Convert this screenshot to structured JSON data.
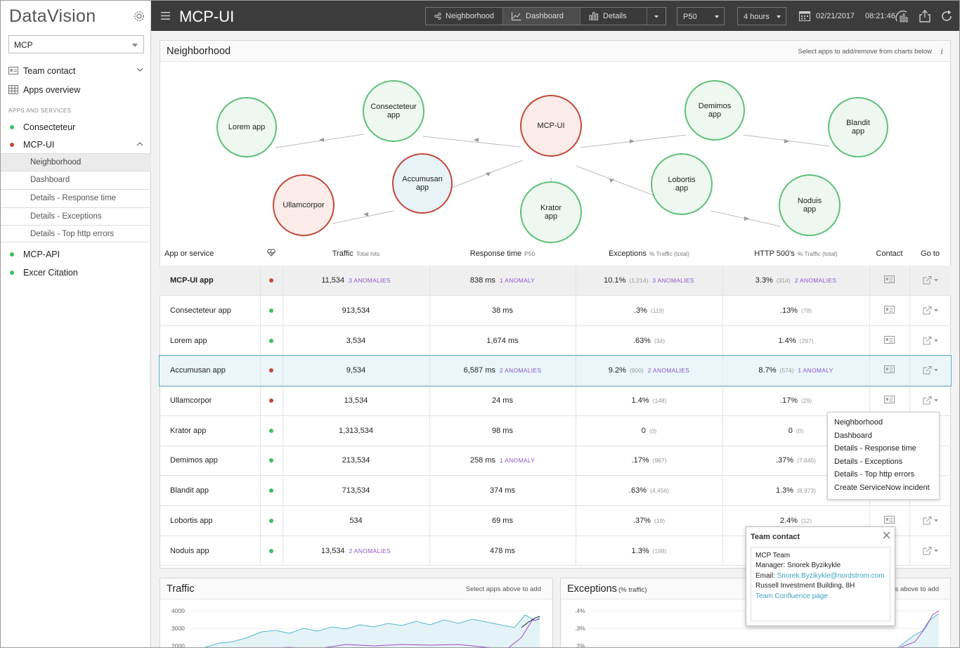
{
  "sidebar": {
    "logo": "DataVision",
    "select_value": "MCP",
    "team_contact": "Team contact",
    "apps_overview": "Apps overview",
    "section_header": "APPS AND SERVICES",
    "services": [
      {
        "label": "Consecteteur",
        "status": "#3dbf5f"
      },
      {
        "label": "MCP-UI",
        "status": "#c2493a"
      }
    ],
    "sub_items": [
      "Neighborhood",
      "Dashboard",
      "Details - Response time",
      "Details - Exceptions",
      "Details - Top http errors"
    ],
    "more_services": [
      {
        "label": "MCP-API",
        "status": "#3dbf5f"
      },
      {
        "label": "Excer Citation",
        "status": "#3dbf5f"
      }
    ]
  },
  "topbar": {
    "title": "MCP-UI",
    "views": [
      "Neighborhood",
      "Dashboard",
      "Details"
    ],
    "percentile": "P50",
    "range": "4 hours",
    "date": "02/21/2017",
    "time": "08:21:46"
  },
  "neighborhood": {
    "title": "Neighborhood",
    "hint": "Select apps to add/remove from charts below",
    "info_icon": "i",
    "nodes": {
      "lorem": "Lorem app",
      "consecteteur": "Consecteteur app",
      "mcpui": "MCP-UI",
      "demimos": "Demimos app",
      "blandit": "Blandit app",
      "ullamcorpor": "Ullamcorpor",
      "accumusan": "Accumusan app",
      "krator": "Krator app",
      "lobortis": "Lobortis app",
      "noduis": "Noduis app"
    }
  },
  "table": {
    "headers": {
      "app": "App or service",
      "traffic": "Traffic",
      "traffic_sub": "Total hits",
      "response": "Response time",
      "response_sub": "P50",
      "exceptions": "Exceptions",
      "exceptions_sub": "% Traffic (total)",
      "http500": "HTTP 500's",
      "http500_sub": "% Traffic (total)",
      "contact": "Contact",
      "goto": "Go to"
    },
    "rows": [
      {
        "name": "MCP-UI app",
        "status": "red",
        "traffic": "11,534",
        "traffic_anom": "3 ANOMALIES",
        "resp": "838 ms",
        "resp_anom": "1 ANOMALY",
        "exc": "10.1%",
        "exc_n": "(1,214)",
        "exc_anom": "3 ANOMALIES",
        "http": "3.3%",
        "http_n": "(314)",
        "http_anom": "2 ANOMALIES"
      },
      {
        "name": "Consecteteur app",
        "status": "green",
        "traffic": "913,534",
        "traffic_anom": "",
        "resp": "38 ms",
        "resp_anom": "",
        "exc": ".3%",
        "exc_n": "(119)",
        "exc_anom": "",
        "http": ".13%",
        "http_n": "(78)",
        "http_anom": ""
      },
      {
        "name": "Lorem app",
        "status": "green",
        "traffic": "3,534",
        "traffic_anom": "",
        "resp": "1,674 ms",
        "resp_anom": "",
        "exc": ".63%",
        "exc_n": "(34)",
        "exc_anom": "",
        "http": "1.4%",
        "http_n": "(297)",
        "http_anom": ""
      },
      {
        "name": "Accumusan app",
        "status": "red",
        "traffic": "9,534",
        "traffic_anom": "",
        "resp": "6,587 ms",
        "resp_anom": "2 ANOMALIES",
        "exc": "9.2%",
        "exc_n": "(900)",
        "exc_anom": "2 ANOMALIES",
        "http": "8.7%",
        "http_n": "(574)",
        "http_anom": "1 ANOMALY"
      },
      {
        "name": "Ullamcorpor",
        "status": "red",
        "traffic": "13,534",
        "traffic_anom": "",
        "resp": "24 ms",
        "resp_anom": "",
        "exc": "1.4%",
        "exc_n": "(148)",
        "exc_anom": "",
        "http": ".17%",
        "http_n": "(29)",
        "http_anom": ""
      },
      {
        "name": "Krator app",
        "status": "green",
        "traffic": "1,313,534",
        "traffic_anom": "",
        "resp": "98 ms",
        "resp_anom": "",
        "exc": "0",
        "exc_n": "(0)",
        "exc_anom": "",
        "http": "0",
        "http_n": "(0)",
        "http_anom": ""
      },
      {
        "name": "Demimos app",
        "status": "green",
        "traffic": "213,534",
        "traffic_anom": "",
        "resp": "258 ms",
        "resp_anom": "1 ANOMALY",
        "exc": ".17%",
        "exc_n": "(987)",
        "exc_anom": "",
        "http": ".37%",
        "http_n": "(7,845)",
        "http_anom": ""
      },
      {
        "name": "Blandit app",
        "status": "green",
        "traffic": "713,534",
        "traffic_anom": "",
        "resp": "374 ms",
        "resp_anom": "",
        "exc": ".63%",
        "exc_n": "(4,456)",
        "exc_anom": "",
        "http": "1.3%",
        "http_n": "(8,973)",
        "http_anom": ""
      },
      {
        "name": "Lobortis app",
        "status": "green",
        "traffic": "534",
        "traffic_anom": "",
        "resp": "69 ms",
        "resp_anom": "",
        "exc": ".37%",
        "exc_n": "(19)",
        "exc_anom": "",
        "http": "2.4%",
        "http_n": "(12)",
        "http_anom": ""
      },
      {
        "name": "Noduis app",
        "status": "green",
        "traffic": "13,534",
        "traffic_anom": "2 ANOMALIES",
        "resp": "478 ms",
        "resp_anom": "",
        "exc": "1.3%",
        "exc_n": "(198)",
        "exc_anom": "",
        "http": "",
        "http_n": "",
        "http_anom": ""
      }
    ]
  },
  "goto_menu": [
    "Neighborhood",
    "Dashboard",
    "Details - Response time",
    "Details - Exceptions",
    "Details - Top http errors",
    "Create ServiceNow incident"
  ],
  "team_popup": {
    "title": "Team contact",
    "team": "MCP Team",
    "manager": "Manager: Snorek Byzikykle",
    "email_label": "Email: ",
    "email": "Snorek.Byzikykle@nordstrom.com",
    "location": "Russell Investment Building, 8H",
    "confluence": "Team Confluence page"
  },
  "traffic_panel": {
    "title": "Traffic",
    "hint": "Select apps above to add",
    "yticks": [
      "4000",
      "3000",
      "2000"
    ]
  },
  "exceptions_panel": {
    "title": "Exceptions",
    "subtitle": "(% traffic)",
    "hint": "Select apps above to add",
    "yticks": [
      ".4%",
      ".3%",
      ".2%"
    ]
  },
  "colors": {
    "green": "#3dbf5f",
    "red": "#c2493a",
    "accent": "#3aa3c0",
    "anomaly": "#8d56c6"
  }
}
